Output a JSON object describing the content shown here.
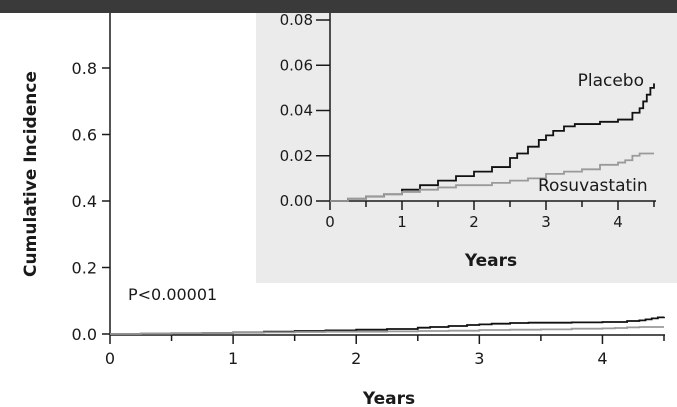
{
  "colors": {
    "topbar": "#3a3a3a",
    "inset_bg": "#ebebeb",
    "axis": "#1a1a1a",
    "placebo": "#111111",
    "rosuvastatin": "#9a9a9a"
  },
  "chart_data": [
    {
      "type": "line",
      "xlabel": "Years",
      "ylabel": "Cumulative Incidence",
      "xlim": [
        0,
        4.5
      ],
      "ylim": [
        0,
        1.0
      ],
      "x_ticks": [
        0,
        1,
        2,
        3,
        4
      ],
      "y_ticks": [
        0.0,
        0.2,
        0.4,
        0.6,
        0.8
      ],
      "x_tick_labels": [
        "0",
        "1",
        "2",
        "3",
        "4"
      ],
      "y_tick_labels": [
        "0.0",
        "0.2",
        "0.4",
        "0.6",
        "0.8"
      ],
      "annotation": "P<0.00001",
      "series": [
        {
          "name": "Placebo",
          "x": [
            0,
            0.25,
            0.5,
            0.75,
            1.0,
            1.25,
            1.5,
            1.75,
            2.0,
            2.25,
            2.5,
            2.6,
            2.75,
            2.9,
            3.0,
            3.1,
            3.25,
            3.4,
            3.6,
            3.75,
            3.9,
            4.0,
            4.1,
            4.2,
            4.3,
            4.35,
            4.4,
            4.45,
            4.5
          ],
          "y": [
            0,
            0.001,
            0.002,
            0.003,
            0.005,
            0.007,
            0.009,
            0.011,
            0.013,
            0.015,
            0.019,
            0.021,
            0.024,
            0.027,
            0.029,
            0.031,
            0.033,
            0.034,
            0.034,
            0.035,
            0.035,
            0.036,
            0.036,
            0.039,
            0.041,
            0.044,
            0.047,
            0.05,
            0.052
          ]
        },
        {
          "name": "Rosuvastatin",
          "x": [
            0,
            0.25,
            0.5,
            0.75,
            1.0,
            1.25,
            1.5,
            1.75,
            2.0,
            2.25,
            2.5,
            2.75,
            3.0,
            3.25,
            3.5,
            3.75,
            4.0,
            4.1,
            4.2,
            4.3,
            4.4,
            4.5
          ],
          "y": [
            0,
            0.001,
            0.002,
            0.003,
            0.004,
            0.005,
            0.006,
            0.007,
            0.007,
            0.008,
            0.009,
            0.01,
            0.012,
            0.013,
            0.014,
            0.016,
            0.017,
            0.018,
            0.02,
            0.021,
            0.021,
            0.021
          ]
        }
      ]
    },
    {
      "type": "line",
      "xlabel": "Years",
      "ylabel": "",
      "xlim": [
        0,
        4.5
      ],
      "ylim": [
        0,
        0.08
      ],
      "x_ticks": [
        0,
        1,
        2,
        3,
        4
      ],
      "y_ticks": [
        0.0,
        0.02,
        0.04,
        0.06,
        0.08
      ],
      "x_tick_labels": [
        "0",
        "1",
        "2",
        "3",
        "4"
      ],
      "y_tick_labels": [
        "0.00",
        "0.02",
        "0.04",
        "0.06",
        "0.08"
      ],
      "series": [
        {
          "name": "Placebo",
          "x": [
            0,
            0.25,
            0.5,
            0.75,
            1.0,
            1.25,
            1.5,
            1.75,
            2.0,
            2.25,
            2.5,
            2.6,
            2.75,
            2.9,
            3.0,
            3.1,
            3.25,
            3.4,
            3.6,
            3.75,
            3.9,
            4.0,
            4.1,
            4.2,
            4.3,
            4.35,
            4.4,
            4.45,
            4.5
          ],
          "y": [
            0,
            0.001,
            0.002,
            0.003,
            0.005,
            0.007,
            0.009,
            0.011,
            0.013,
            0.015,
            0.019,
            0.021,
            0.024,
            0.027,
            0.029,
            0.031,
            0.033,
            0.034,
            0.034,
            0.035,
            0.035,
            0.036,
            0.036,
            0.039,
            0.041,
            0.044,
            0.047,
            0.05,
            0.052
          ]
        },
        {
          "name": "Rosuvastatin",
          "x": [
            0,
            0.25,
            0.5,
            0.75,
            1.0,
            1.25,
            1.5,
            1.75,
            2.0,
            2.25,
            2.5,
            2.75,
            3.0,
            3.25,
            3.5,
            3.75,
            4.0,
            4.1,
            4.2,
            4.3,
            4.4,
            4.5
          ],
          "y": [
            0,
            0.001,
            0.002,
            0.003,
            0.004,
            0.005,
            0.006,
            0.007,
            0.007,
            0.008,
            0.009,
            0.01,
            0.012,
            0.013,
            0.014,
            0.016,
            0.017,
            0.018,
            0.02,
            0.021,
            0.021,
            0.021
          ]
        }
      ]
    }
  ]
}
